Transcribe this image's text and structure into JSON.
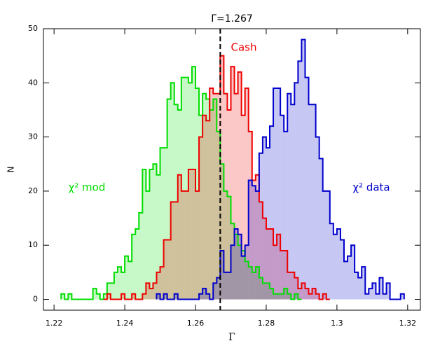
{
  "chart_data": {
    "type": "histogram",
    "title": "Γ=1.267",
    "xlabel": "Γ",
    "ylabel": "N",
    "xlim": [
      1.217,
      1.3236
    ],
    "ylim": [
      -2,
      50
    ],
    "xticks": [
      1.22,
      1.24,
      1.26,
      1.28,
      1.3,
      1.32
    ],
    "yticks": [
      0,
      10,
      20,
      30,
      40,
      50
    ],
    "vline": 1.267,
    "series": [
      {
        "name": "χ² mod",
        "color": "#00dd00",
        "bins": [
          1.222,
          1.223,
          1.224,
          1.225,
          1.226,
          1.227,
          1.228,
          1.229,
          1.23,
          1.231,
          1.232,
          1.233,
          1.234,
          1.235,
          1.236,
          1.237,
          1.238,
          1.239,
          1.24,
          1.241,
          1.242,
          1.243,
          1.244,
          1.245,
          1.246,
          1.247,
          1.248,
          1.249,
          1.25,
          1.251,
          1.252,
          1.253,
          1.254,
          1.255,
          1.256,
          1.257,
          1.258,
          1.259,
          1.26,
          1.261,
          1.262,
          1.263,
          1.264,
          1.265,
          1.266,
          1.267,
          1.268,
          1.269,
          1.27,
          1.271,
          1.272,
          1.273,
          1.274,
          1.275,
          1.276,
          1.277,
          1.278,
          1.279,
          1.28,
          1.281,
          1.282,
          1.283,
          1.284,
          1.285,
          1.286,
          1.287,
          1.288,
          1.289,
          1.29
        ],
        "values": [
          1,
          0,
          1,
          0,
          0,
          0,
          0,
          0,
          0,
          2,
          1,
          0,
          1,
          3,
          3,
          5,
          6,
          5,
          8,
          7,
          12,
          13,
          16,
          24,
          20,
          24,
          25,
          23,
          28,
          28,
          37,
          40,
          36,
          35,
          41,
          41,
          40,
          43,
          39,
          34,
          38,
          37,
          35,
          37,
          31,
          25,
          20,
          19,
          14,
          12,
          10,
          9,
          7,
          6,
          5,
          6,
          4,
          3,
          3,
          2,
          1,
          1,
          1,
          2,
          1,
          0,
          1,
          0
        ]
      },
      {
        "name": "Cash",
        "color": "#ee0000",
        "bins": [
          1.234,
          1.235,
          1.236,
          1.237,
          1.238,
          1.239,
          1.24,
          1.241,
          1.242,
          1.243,
          1.244,
          1.245,
          1.246,
          1.247,
          1.248,
          1.249,
          1.25,
          1.251,
          1.252,
          1.253,
          1.254,
          1.255,
          1.256,
          1.257,
          1.258,
          1.259,
          1.26,
          1.261,
          1.262,
          1.263,
          1.264,
          1.265,
          1.266,
          1.267,
          1.268,
          1.269,
          1.27,
          1.271,
          1.272,
          1.273,
          1.274,
          1.275,
          1.276,
          1.277,
          1.278,
          1.279,
          1.28,
          1.281,
          1.282,
          1.283,
          1.284,
          1.285,
          1.286,
          1.287,
          1.288,
          1.289,
          1.29,
          1.291,
          1.292,
          1.293,
          1.294,
          1.295,
          1.296,
          1.297,
          1.298
        ],
        "values": [
          0,
          1,
          0,
          0,
          0,
          1,
          0,
          0,
          1,
          0,
          0,
          1,
          3,
          2,
          3,
          5,
          6,
          11,
          11,
          18,
          18,
          23,
          20,
          20,
          24,
          24,
          20,
          30,
          34,
          33,
          39,
          38,
          38,
          45,
          38,
          35,
          43,
          38,
          42,
          34,
          39,
          31,
          22,
          23,
          18,
          15,
          13,
          13,
          10,
          12,
          9,
          9,
          5,
          5,
          4,
          2,
          3,
          2,
          1,
          2,
          1,
          0,
          1,
          0
        ]
      },
      {
        "name": "χ² data",
        "color": "#0000cc",
        "bins": [
          1.249,
          1.25,
          1.251,
          1.252,
          1.253,
          1.254,
          1.255,
          1.256,
          1.257,
          1.258,
          1.259,
          1.26,
          1.261,
          1.262,
          1.263,
          1.264,
          1.265,
          1.266,
          1.267,
          1.268,
          1.269,
          1.27,
          1.271,
          1.272,
          1.273,
          1.274,
          1.275,
          1.276,
          1.277,
          1.278,
          1.279,
          1.28,
          1.281,
          1.282,
          1.283,
          1.284,
          1.285,
          1.286,
          1.287,
          1.288,
          1.289,
          1.29,
          1.291,
          1.292,
          1.293,
          1.294,
          1.295,
          1.296,
          1.297,
          1.298,
          1.299,
          1.3,
          1.301,
          1.302,
          1.303,
          1.304,
          1.305,
          1.306,
          1.307,
          1.308,
          1.309,
          1.31,
          1.311,
          1.312,
          1.313,
          1.314,
          1.315,
          1.316,
          1.317,
          1.318,
          1.319
        ],
        "values": [
          1,
          0,
          1,
          0,
          0,
          1,
          0,
          0,
          0,
          0,
          0,
          0,
          1,
          2,
          1,
          0,
          3,
          4,
          9,
          5,
          5,
          10,
          13,
          12,
          8,
          10,
          22,
          21,
          20,
          27,
          30,
          28,
          32,
          39,
          39,
          34,
          31,
          38,
          36,
          40,
          44,
          48,
          41,
          36,
          36,
          30,
          26,
          20,
          20,
          14,
          12,
          13,
          11,
          7,
          8,
          10,
          5,
          4,
          6,
          1,
          2,
          3,
          1,
          4,
          1,
          3,
          0,
          0,
          0,
          1
        ]
      }
    ]
  }
}
